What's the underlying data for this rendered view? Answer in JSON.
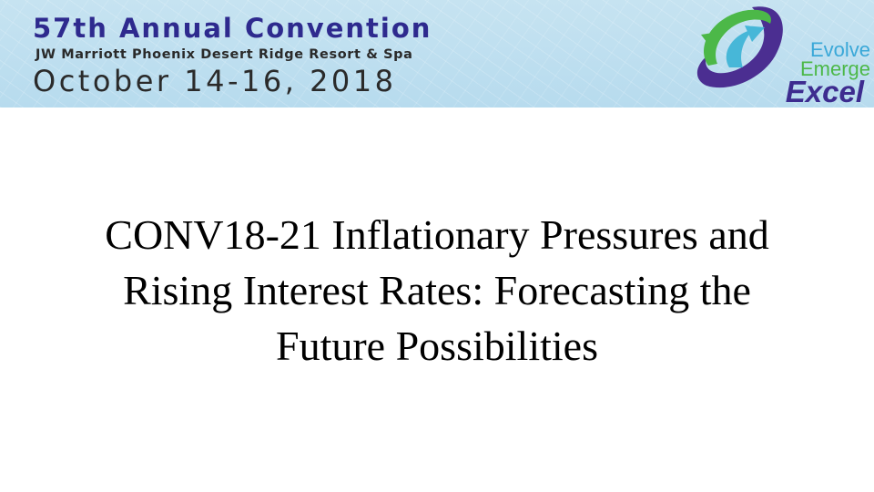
{
  "banner": {
    "convention": "57th Annual Convention",
    "venue": "JW Marriott Phoenix Desert Ridge Resort & Spa",
    "dates": "October 14-16, 2018",
    "colors": {
      "convention_text": "#2e2a8e",
      "background": "#c0e0f0"
    }
  },
  "logo": {
    "lines": [
      "Evolve",
      "Emerge",
      "Excel"
    ],
    "colors": {
      "evolve": "#3aa8d8",
      "emerge": "#4cb848",
      "excel": "#3d2c8f"
    }
  },
  "slide": {
    "title_lines": [
      "CONV18-21 Inflationary Pressures and",
      "Rising Interest Rates: Forecasting the",
      "Future Possibilities"
    ]
  }
}
